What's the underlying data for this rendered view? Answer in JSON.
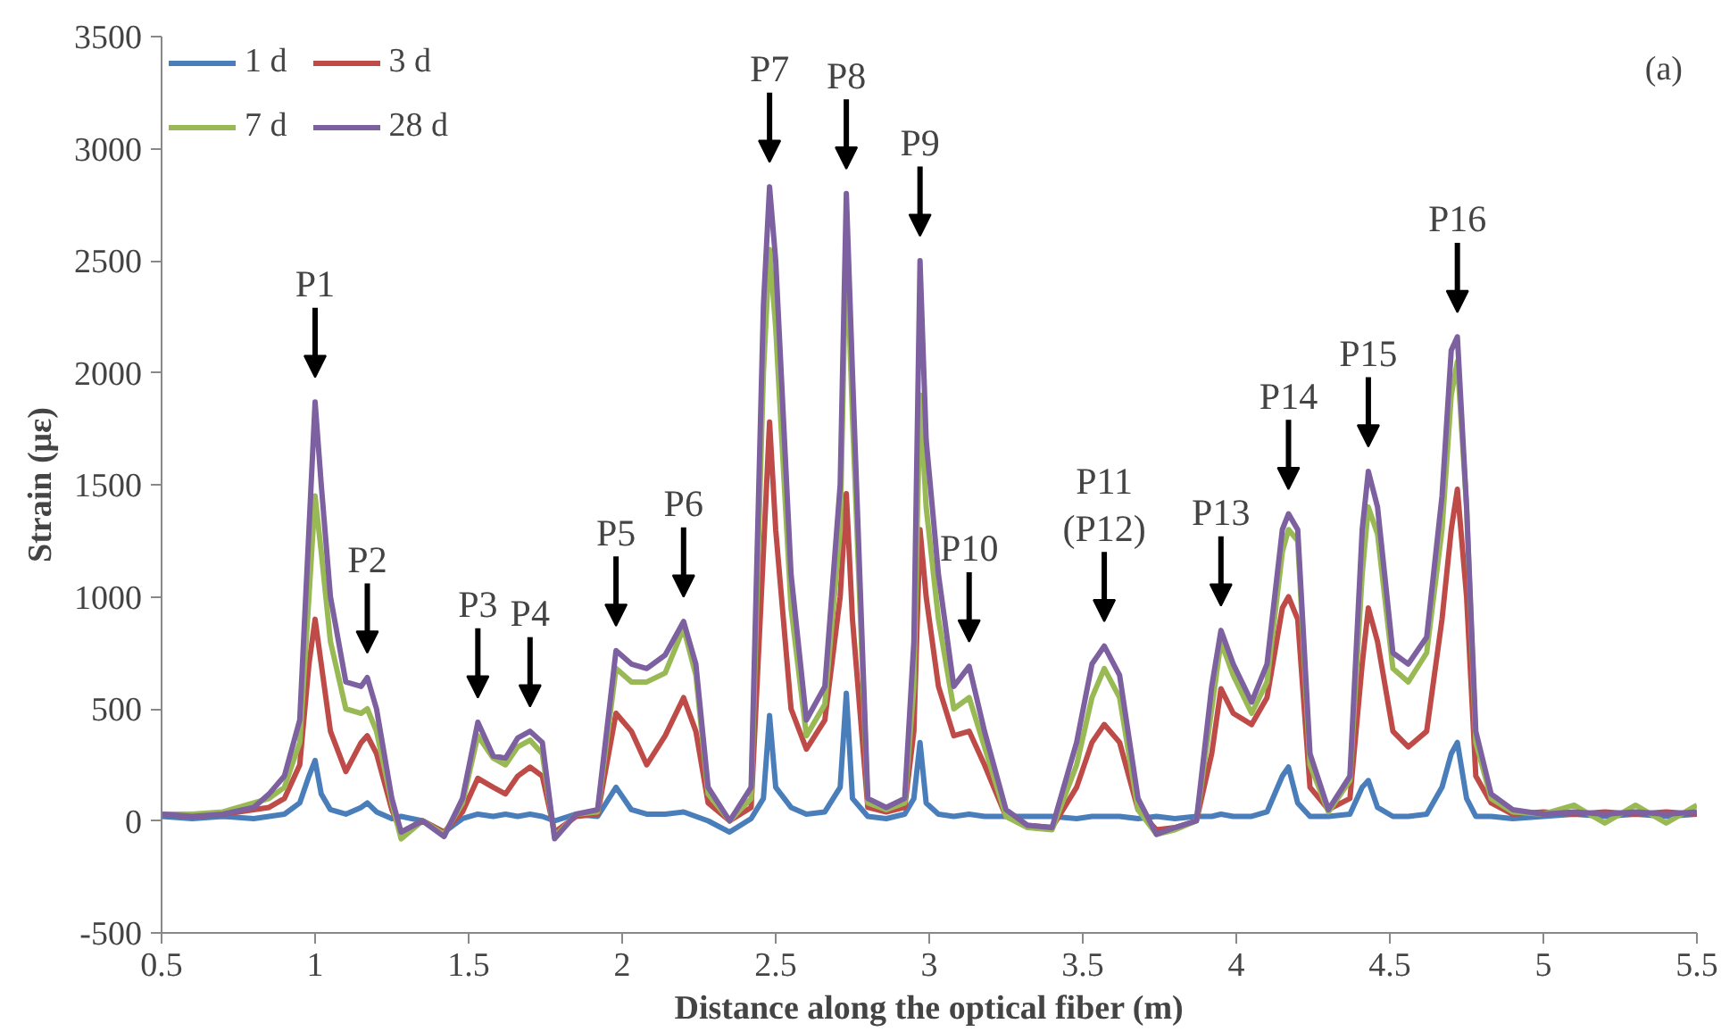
{
  "chart_data": {
    "type": "line",
    "xlabel": "Distance along the optical fiber (m)",
    "ylabel": "Strain (με)",
    "x": [
      0.5,
      0.6,
      0.7,
      0.8,
      0.85,
      0.9,
      0.95,
      0.98,
      1.0,
      1.02,
      1.05,
      1.1,
      1.15,
      1.17,
      1.2,
      1.25,
      1.28,
      1.35,
      1.42,
      1.48,
      1.53,
      1.58,
      1.62,
      1.66,
      1.7,
      1.74,
      1.78,
      1.85,
      1.92,
      1.98,
      2.03,
      2.08,
      2.14,
      2.2,
      2.24,
      2.28,
      2.35,
      2.42,
      2.46,
      2.48,
      2.5,
      2.55,
      2.6,
      2.66,
      2.71,
      2.73,
      2.75,
      2.8,
      2.86,
      2.92,
      2.95,
      2.97,
      2.99,
      3.03,
      3.08,
      3.13,
      3.18,
      3.25,
      3.32,
      3.4,
      3.48,
      3.53,
      3.57,
      3.62,
      3.68,
      3.74,
      3.8,
      3.87,
      3.92,
      3.95,
      3.99,
      4.05,
      4.1,
      4.15,
      4.17,
      4.2,
      4.24,
      4.3,
      4.37,
      4.41,
      4.43,
      4.46,
      4.51,
      4.56,
      4.62,
      4.67,
      4.7,
      4.72,
      4.75,
      4.78,
      4.83,
      4.9,
      5.0,
      5.1,
      5.2,
      5.3,
      5.4,
      5.5
    ],
    "series": [
      {
        "name": "1 d",
        "color": "#4a7ebb",
        "values": [
          20,
          10,
          20,
          10,
          20,
          30,
          80,
          200,
          270,
          120,
          50,
          30,
          60,
          80,
          40,
          10,
          20,
          0,
          -50,
          10,
          30,
          20,
          30,
          20,
          30,
          20,
          0,
          30,
          20,
          150,
          50,
          30,
          30,
          40,
          20,
          0,
          -50,
          10,
          100,
          470,
          150,
          60,
          30,
          40,
          150,
          570,
          100,
          20,
          10,
          30,
          100,
          350,
          80,
          30,
          20,
          30,
          20,
          20,
          20,
          20,
          10,
          20,
          20,
          20,
          10,
          20,
          10,
          20,
          20,
          30,
          20,
          20,
          40,
          200,
          240,
          80,
          20,
          20,
          30,
          150,
          180,
          60,
          20,
          20,
          30,
          150,
          300,
          350,
          100,
          20,
          20,
          10,
          20,
          30,
          20,
          30,
          20,
          30
        ]
      },
      {
        "name": "3 d",
        "color": "#be4b48",
        "values": [
          30,
          20,
          30,
          50,
          60,
          100,
          250,
          700,
          900,
          700,
          400,
          220,
          350,
          380,
          300,
          50,
          -50,
          0,
          -50,
          40,
          190,
          150,
          120,
          200,
          240,
          200,
          -50,
          20,
          30,
          480,
          400,
          250,
          380,
          550,
          400,
          80,
          0,
          60,
          1200,
          1780,
          1300,
          500,
          320,
          450,
          1000,
          1460,
          900,
          60,
          40,
          60,
          400,
          1300,
          1000,
          600,
          380,
          400,
          250,
          20,
          -20,
          -30,
          150,
          350,
          430,
          350,
          50,
          -40,
          -30,
          0,
          300,
          590,
          480,
          430,
          550,
          950,
          1000,
          900,
          150,
          50,
          100,
          700,
          950,
          800,
          400,
          330,
          400,
          900,
          1300,
          1480,
          1000,
          200,
          80,
          30,
          40,
          30,
          40,
          30,
          40,
          30
        ]
      },
      {
        "name": "7 d",
        "color": "#98b954",
        "values": [
          30,
          30,
          40,
          80,
          100,
          150,
          350,
          1000,
          1450,
          1200,
          800,
          500,
          480,
          500,
          400,
          80,
          -80,
          0,
          -60,
          80,
          380,
          280,
          250,
          330,
          360,
          300,
          -70,
          30,
          40,
          680,
          620,
          620,
          660,
          860,
          650,
          120,
          0,
          100,
          2000,
          2550,
          2200,
          950,
          380,
          520,
          1300,
          2600,
          1800,
          80,
          50,
          80,
          600,
          1900,
          1400,
          900,
          500,
          550,
          330,
          20,
          -30,
          -40,
          250,
          550,
          680,
          550,
          50,
          -60,
          -40,
          0,
          500,
          800,
          650,
          480,
          620,
          1200,
          1300,
          1250,
          250,
          40,
          180,
          1100,
          1400,
          1280,
          680,
          620,
          750,
          1300,
          1900,
          2050,
          1400,
          350,
          100,
          40,
          30,
          70,
          -10,
          70,
          -10,
          70
        ]
      },
      {
        "name": "28 d",
        "color": "#7d60a0",
        "values": [
          30,
          20,
          30,
          60,
          120,
          200,
          450,
          1300,
          1870,
          1500,
          1000,
          620,
          600,
          640,
          500,
          100,
          -50,
          0,
          -70,
          100,
          440,
          290,
          280,
          370,
          400,
          350,
          -80,
          30,
          50,
          760,
          700,
          680,
          740,
          890,
          700,
          150,
          0,
          150,
          2300,
          2830,
          2500,
          1100,
          450,
          600,
          1500,
          2800,
          2000,
          100,
          60,
          100,
          800,
          2500,
          1700,
          1100,
          600,
          690,
          400,
          50,
          -20,
          -30,
          350,
          700,
          780,
          650,
          100,
          -60,
          -30,
          0,
          600,
          850,
          700,
          530,
          700,
          1300,
          1370,
          1300,
          300,
          50,
          200,
          1300,
          1560,
          1400,
          750,
          700,
          820,
          1450,
          2100,
          2160,
          1400,
          400,
          120,
          50,
          30,
          40,
          30,
          40,
          30,
          40
        ]
      }
    ],
    "xlim": [
      0.5,
      5.5
    ],
    "xticks": [
      0.5,
      1,
      1.5,
      2,
      2.5,
      3,
      3.5,
      4,
      4.5,
      5,
      5.5
    ],
    "ylim": [
      -500,
      3500
    ],
    "yticks": [
      -500,
      0,
      500,
      1000,
      1500,
      2000,
      2500,
      3000,
      3500
    ],
    "grid": false,
    "legend": "top left",
    "marker": "none",
    "line_style": "solid",
    "annotations": [
      {
        "text": "P1",
        "x": 1.0,
        "y": 1870
      },
      {
        "text": "P2",
        "x": 1.17,
        "y": 640
      },
      {
        "text": "P3",
        "x": 1.53,
        "y": 440
      },
      {
        "text": "P4",
        "x": 1.7,
        "y": 400
      },
      {
        "text": "P5",
        "x": 1.98,
        "y": 760
      },
      {
        "text": "P6",
        "x": 2.2,
        "y": 890
      },
      {
        "text": "P7",
        "x": 2.48,
        "y": 2830
      },
      {
        "text": "P8",
        "x": 2.73,
        "y": 2800
      },
      {
        "text": "P9",
        "x": 2.97,
        "y": 2500
      },
      {
        "text": "P10",
        "x": 3.13,
        "y": 690
      },
      {
        "text": "P11\n(P12)",
        "x": 3.57,
        "y": 780
      },
      {
        "text": "P13",
        "x": 3.95,
        "y": 850
      },
      {
        "text": "P14",
        "x": 4.17,
        "y": 1370
      },
      {
        "text": "P15",
        "x": 4.43,
        "y": 1560
      },
      {
        "text": "P16",
        "x": 4.72,
        "y": 2160
      },
      "(a)"
    ]
  }
}
